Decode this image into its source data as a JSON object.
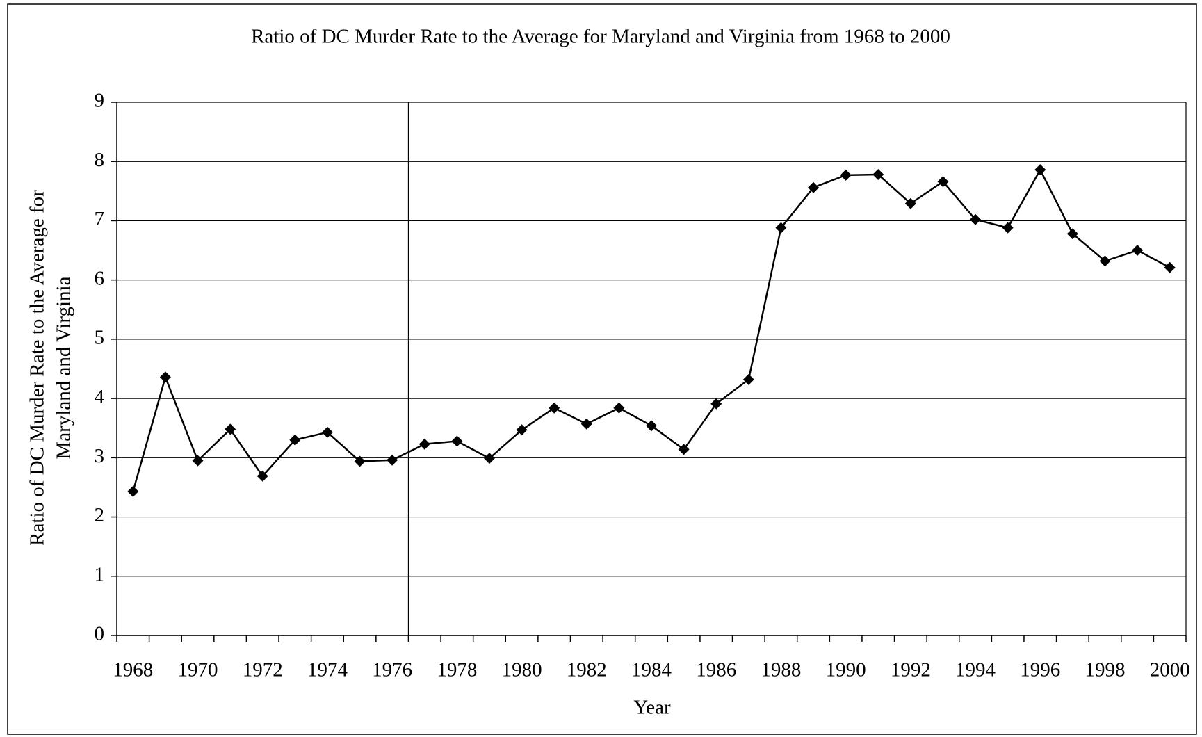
{
  "chart_data": {
    "type": "line",
    "title": "Ratio of DC Murder Rate to the Average for Maryland and Virginia from 1968 to 2000",
    "x_label": "Year",
    "y_label": [
      "Ratio of DC Murder Rate to the Average for",
      "Maryland and Virginia"
    ],
    "categories": [
      "1968",
      null,
      "1970",
      null,
      "1972",
      null,
      "1974",
      null,
      "1976",
      null,
      "1978",
      null,
      "1980",
      null,
      "1982",
      null,
      "1984",
      null,
      "1986",
      null,
      "1988",
      null,
      "1990",
      null,
      "1992",
      null,
      "1994",
      null,
      "1996",
      null,
      "1998",
      null,
      "2000"
    ],
    "series": [
      {
        "name": "Ratio",
        "color": "#000000",
        "values": [
          2.43,
          4.36,
          2.95,
          3.48,
          2.69,
          3.3,
          3.43,
          2.94,
          2.96,
          3.23,
          3.28,
          2.99,
          3.47,
          3.84,
          3.57,
          3.84,
          3.54,
          3.14,
          3.91,
          4.32,
          6.88,
          7.56,
          7.77,
          7.78,
          7.29,
          7.66,
          7.02,
          6.88,
          7.86,
          6.78,
          6.32,
          6.5,
          6.21
        ]
      }
    ],
    "ylim": [
      0,
      9
    ],
    "yticks": [
      0,
      1,
      2,
      3,
      4,
      5,
      6,
      7,
      8,
      9
    ],
    "grid": true
  }
}
